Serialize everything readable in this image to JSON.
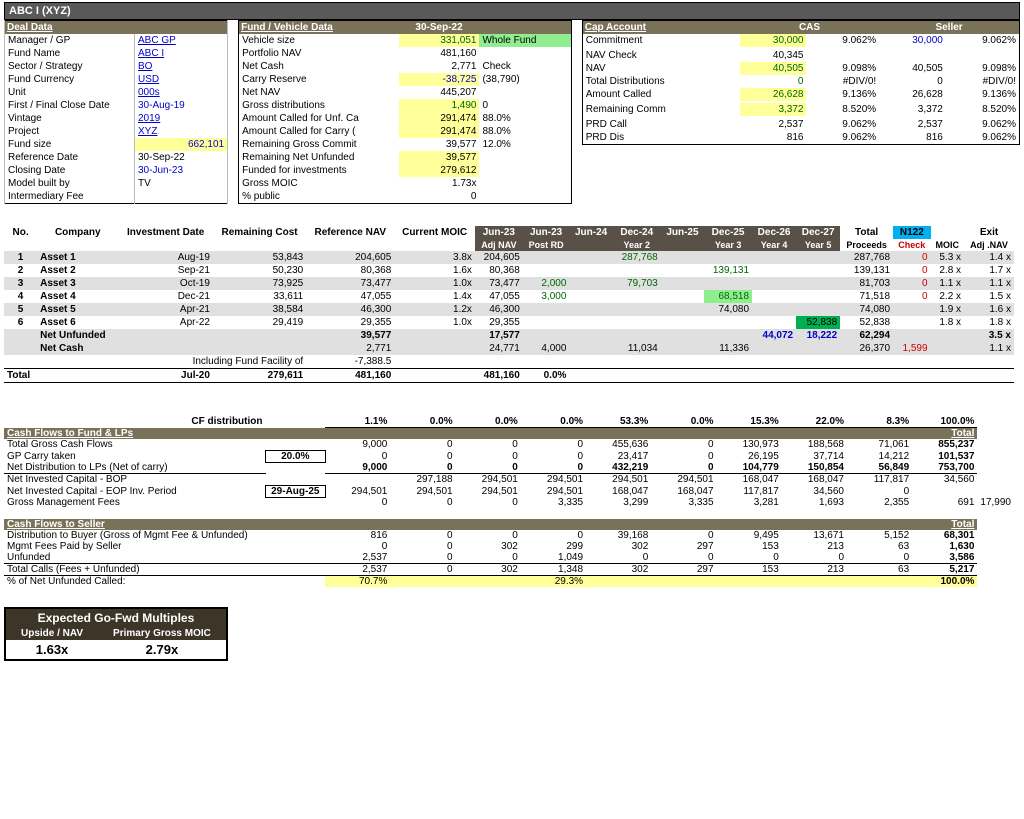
{
  "title": "ABC I (XYZ)",
  "deal": {
    "head": "Deal Data",
    "rows": [
      [
        "Manager / GP",
        "ABC GP",
        "blue-ul"
      ],
      [
        "Fund Name",
        "ABC I",
        "blue-ul"
      ],
      [
        "Sector / Strategy",
        "BO",
        "blue-ul"
      ],
      [
        "Fund Currency",
        "USD",
        "blue-ul"
      ],
      [
        "Unit",
        "000s",
        "blue-ul"
      ],
      [
        "First / Final Close Date",
        "30-Aug-19",
        "blue"
      ],
      [
        "Vintage",
        "2019",
        "blue-ul"
      ],
      [
        "Project",
        "XYZ",
        "blue-ul"
      ],
      [
        "Fund size",
        "662,101",
        "blue right hl-yellow"
      ],
      [
        "Reference Date",
        "30-Sep-22",
        ""
      ],
      [
        "Closing Date",
        "30-Jun-23",
        "blue"
      ],
      [
        "Model built by",
        "TV",
        ""
      ],
      [
        "Intermediary Fee",
        "",
        ""
      ]
    ]
  },
  "fv": {
    "head": "Fund / Vehicle Data",
    "date": "30-Sep-22",
    "rows": [
      [
        "Vehicle size",
        "331,051",
        "green-txt hl-yellow",
        "Whole Fund",
        "hl-green"
      ],
      [
        "Portfolio NAV",
        "481,160",
        "",
        "",
        ""
      ],
      [
        "Net Cash",
        "2,771",
        "",
        "Check",
        ""
      ],
      [
        "Carry Reserve",
        "-38,725",
        "blue hl-yellow",
        "(38,790)",
        ""
      ],
      [
        "Net NAV",
        "445,207",
        "",
        "",
        ""
      ],
      [
        "Gross distributions",
        "1,490",
        "hl-yellow green-txt",
        "0",
        ""
      ],
      [
        "Amount Called for Unf. Ca",
        "291,474",
        "hl-yellow",
        "88.0%",
        ""
      ],
      [
        "Amount Called for Carry (",
        "291,474",
        "hl-yellow",
        "88.0%",
        ""
      ],
      [
        "Remaining Gross Commit",
        "39,577",
        "",
        "12.0%",
        ""
      ],
      [
        "Remaining Net Unfunded",
        "39,577",
        "hl-yellow",
        "",
        ""
      ],
      [
        "Funded for investments",
        "279,612",
        "hl-yellow",
        "",
        ""
      ],
      [
        "Gross MOIC",
        "1.73x",
        "",
        "",
        ""
      ],
      [
        "% public",
        "0",
        "",
        "",
        ""
      ]
    ]
  },
  "cap": {
    "head": "Cap Account",
    "col1": "CAS",
    "col2": "Seller",
    "rows": [
      [
        "Commitment",
        "30,000",
        "9.062%",
        "30,000",
        "9.062%",
        "hl-yellow green-txt",
        "blue"
      ],
      [
        "",
        "",
        "",
        "",
        "",
        ""
      ],
      [
        "NAV Check",
        "40,345",
        "",
        "",
        "",
        "",
        ""
      ],
      [
        "NAV",
        "40,505",
        "9.098%",
        "40,505",
        "9.098%",
        "hl-yellow green-txt",
        ""
      ],
      [
        "Total Distributions",
        "0",
        "#DIV/0!",
        "0",
        "#DIV/0!",
        "green-txt",
        ""
      ],
      [
        "Amount Called",
        "26,628",
        "9.136%",
        "26,628",
        "9.136%",
        "hl-yellow green-txt",
        ""
      ],
      [
        "",
        "",
        "",
        "",
        "",
        "",
        ""
      ],
      [
        "Remaining Comm",
        "3,372",
        "8.520%",
        "3,372",
        "8.520%",
        "hl-yellow green-txt",
        ""
      ],
      [
        "",
        "",
        "",
        "",
        "",
        "",
        ""
      ],
      [
        "PRD Call",
        "2,537",
        "9.062%",
        "2,537",
        "9.062%",
        "",
        ""
      ],
      [
        "PRD Dis",
        "816",
        "9.062%",
        "816",
        "9.062%",
        "",
        ""
      ]
    ]
  },
  "inv": {
    "cols": [
      "No.",
      "Company",
      "Investment Date",
      "Remaining Cost",
      "Reference NAV",
      "Current MOIC",
      "Jun-23",
      "Jun-23",
      "Jun-24",
      "Dec-24",
      "Jun-25",
      "Dec-25",
      "Dec-26",
      "Dec-27",
      "Total",
      "N122",
      "",
      "Exit"
    ],
    "sub": [
      "",
      "",
      "",
      "",
      "",
      "",
      "Adj NAV",
      "Post RD",
      "",
      "Year 2",
      "",
      "Year 3",
      "Year 4",
      "Year 5",
      "Proceeds",
      "Check",
      "MOIC",
      "Adj .NAV"
    ],
    "rows": [
      [
        "1",
        "Asset 1",
        "Aug-19",
        "53,843",
        "204,605",
        "3.8x",
        "204,605",
        "",
        "",
        "287,768",
        "",
        "",
        "",
        "",
        "287,768",
        "0",
        "5.3 x",
        "1.4 x"
      ],
      [
        "2",
        "Asset 2",
        "Sep-21",
        "50,230",
        "80,368",
        "1.6x",
        "80,368",
        "",
        "",
        "",
        "",
        "139,131",
        "",
        "",
        "139,131",
        "0",
        "2.8 x",
        "1.7 x"
      ],
      [
        "3",
        "Asset 3",
        "Oct-19",
        "73,925",
        "73,477",
        "1.0x",
        "73,477",
        "2,000",
        "",
        "79,703",
        "",
        "",
        "",
        "",
        "81,703",
        "0",
        "1.1 x",
        "1.1 x"
      ],
      [
        "4",
        "Asset 4",
        "Dec-21",
        "33,611",
        "47,055",
        "1.4x",
        "47,055",
        "3,000",
        "",
        "",
        "",
        "68,518",
        "",
        "",
        "71,518",
        "0",
        "2.2 x",
        "1.5 x"
      ],
      [
        "5",
        "Asset 5",
        "Apr-21",
        "38,584",
        "46,300",
        "1.2x",
        "46,300",
        "",
        "",
        "",
        "",
        "74,080",
        "",
        "",
        "74,080",
        "",
        "1.9 x",
        "1.6 x"
      ],
      [
        "6",
        "Asset 6",
        "Apr-22",
        "29,419",
        "29,355",
        "1.0x",
        "29,355",
        "",
        "",
        "",
        "",
        "",
        "",
        "52,838",
        "52,838",
        "",
        "1.8 x",
        "1.8 x"
      ]
    ],
    "netUnf": [
      "",
      "Net Unfunded",
      "",
      "",
      "39,577",
      "",
      "17,577",
      "",
      "",
      "",
      "",
      "",
      "44,072",
      "18,222",
      "62,294",
      "",
      "",
      "3.5 x"
    ],
    "netCash": [
      "",
      "Net Cash",
      "",
      "",
      "2,771",
      "",
      "24,771",
      "4,000",
      "",
      "11,034",
      "",
      "11,336",
      "",
      "",
      "26,370",
      "1,599",
      "",
      "1.1 x"
    ],
    "incl": "Including Fund Facility of",
    "inclVal": "-7,388.5",
    "total": [
      "Total",
      "",
      "Jul-20",
      "279,611",
      "481,160",
      "",
      "481,160",
      "0.0%",
      "",
      "",
      "",
      "",
      "",
      "",
      "",
      "",
      "",
      ""
    ]
  },
  "cf": {
    "distLabel": "CF distribution",
    "distRow": [
      "1.1%",
      "0.0%",
      "0.0%",
      "0.0%",
      "53.3%",
      "0.0%",
      "15.3%",
      "22.0%",
      "8.3%",
      "100.0%"
    ],
    "head1": "Cash Flows to Fund & LPs",
    "totalLbl": "Total",
    "rows1": [
      [
        "Total Gross Cash Flows",
        "",
        "9,000",
        "0",
        "0",
        "0",
        "455,636",
        "0",
        "130,973",
        "188,568",
        "71,061",
        "855,237"
      ],
      [
        "GP Carry taken",
        "20.0%",
        "0",
        "0",
        "0",
        "0",
        "23,417",
        "0",
        "26,195",
        "37,714",
        "14,212",
        "101,537"
      ],
      [
        "Net Distribution to LPs (Net of carry)",
        "",
        "9,000",
        "0",
        "0",
        "0",
        "432,219",
        "0",
        "104,779",
        "150,854",
        "56,849",
        "753,700"
      ],
      [
        "Net Invested Capital - BOP",
        "",
        "",
        "297,188",
        "294,501",
        "294,501",
        "294,501",
        "294,501",
        "168,047",
        "168,047",
        "117,817",
        "34,560",
        ""
      ],
      [
        "Net Invested Capital - EOP   Inv. Period",
        "29-Aug-25",
        "294,501",
        "294,501",
        "294,501",
        "294,501",
        "168,047",
        "168,047",
        "117,817",
        "34,560",
        "0",
        ""
      ],
      [
        "Gross Management Fees",
        "",
        "0",
        "0",
        "0",
        "3,335",
        "3,299",
        "3,335",
        "3,281",
        "1,693",
        "2,355",
        "691",
        "17,990"
      ]
    ],
    "head2": "Cash Flows to Seller",
    "rows2": [
      [
        "Distribution to Buyer (Gross of Mgmt Fee & Unfunded)",
        "816",
        "0",
        "0",
        "0",
        "39,168",
        "0",
        "9,495",
        "13,671",
        "5,152",
        "68,301"
      ],
      [
        "Mgmt Fees Paid by Seller",
        "0",
        "0",
        "302",
        "299",
        "302",
        "297",
        "153",
        "213",
        "63",
        "1,630"
      ],
      [
        "Unfunded",
        "2,537",
        "0",
        "0",
        "1,049",
        "0",
        "0",
        "0",
        "0",
        "0",
        "3,586"
      ],
      [
        "Total Calls (Fees + Unfunded)",
        "2,537",
        "0",
        "302",
        "1,348",
        "302",
        "297",
        "153",
        "213",
        "63",
        "5,217"
      ],
      [
        "% of Net Unfunded Called:",
        "70.7%",
        "",
        "",
        "29.3%",
        "",
        "",
        "",
        "",
        "",
        "100.0%"
      ]
    ]
  },
  "mult": {
    "title": "Expected Go-Fwd Multiples",
    "c1": "Upside / NAV",
    "c2": "Primary Gross MOIC",
    "v1": "1.63x",
    "v2": "2.79x"
  },
  "colors": {
    "bg_dark": "#595959",
    "bg_section": "#7a7258",
    "blue": "#0000cc",
    "green": "#006600",
    "yellow": "#ffff99",
    "hlgreen": "#90ee90"
  }
}
